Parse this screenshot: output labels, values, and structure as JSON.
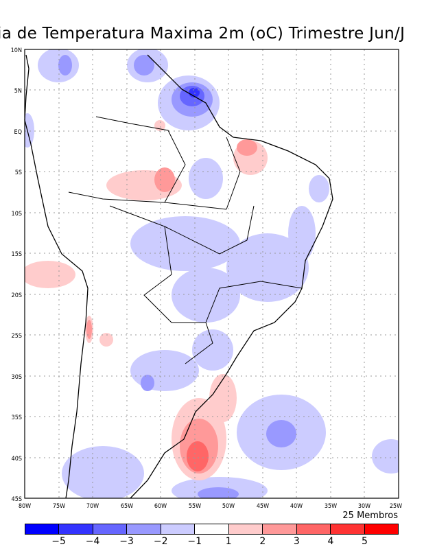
{
  "title": "ia de Temperatura Maxima 2m (oC) Trimestre Jun/J",
  "members_label": "25 Membros",
  "lat_labels": [
    "10N",
    "5N",
    "EQ",
    "5S",
    "10S",
    "15S",
    "20S",
    "25S",
    "30S",
    "35S",
    "40S",
    "45S"
  ],
  "lon_labels": [
    "80W",
    "75W",
    "70W",
    "65W",
    "60W",
    "55W",
    "50W",
    "45W",
    "40W",
    "35W",
    "30W",
    "25W"
  ],
  "colorbar": {
    "colors": [
      "#0000ff",
      "#3333ff",
      "#6666ff",
      "#9999ff",
      "#ccccff",
      "#ffffff",
      "#ffcccc",
      "#ff9999",
      "#ff6666",
      "#ff3333",
      "#ff0000"
    ],
    "labels": [
      "-5",
      "-4",
      "-3",
      "-2",
      "-1",
      "1",
      "2",
      "3",
      "4",
      "5"
    ]
  }
}
